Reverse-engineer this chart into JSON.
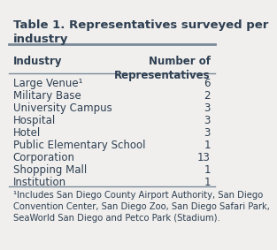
{
  "title": "Table 1. Representatives surveyed per\nindustry",
  "col1_header": "Industry",
  "col2_header": "Number of\nRepresentatives",
  "rows": [
    [
      "Large Venue¹",
      "6"
    ],
    [
      "Military Base",
      "2"
    ],
    [
      "University Campus",
      "3"
    ],
    [
      "Hospital",
      "3"
    ],
    [
      "Hotel",
      "3"
    ],
    [
      "Public Elementary School",
      "1"
    ],
    [
      "Corporation",
      "13"
    ],
    [
      "Shopping Mall",
      "1"
    ],
    [
      "Institution",
      "1"
    ]
  ],
  "footnote": "¹Includes San Diego County Airport Authority, San Diego Convention Center, San Diego Zoo, San Diego Safari Park, SeaWorld San Diego and Petco Park (Stadium).",
  "bg_color": "#f0efed",
  "header_color": "#2e3f52",
  "text_color": "#2e3f52",
  "line_color": "#7a8a99",
  "title_fontsize": 9.5,
  "header_fontsize": 8.5,
  "data_fontsize": 8.5,
  "footnote_fontsize": 7.2
}
